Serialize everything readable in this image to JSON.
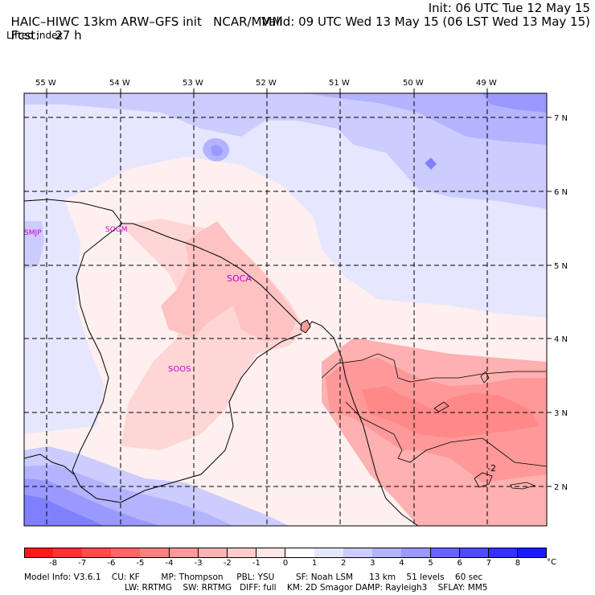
{
  "header": {
    "title": "HAIC–HIWC 13km ARW–GFS init",
    "org": "NCAR/MMM",
    "init": "Init: 06 UTC Tue 12 May 15",
    "fcst_label": "Fcst:",
    "fcst_value": "27 h",
    "valid": "Valid: 09 UTC Wed 13 May 15 (06 LST Wed 13 May 15)",
    "field": "Lifted index"
  },
  "map": {
    "lon_labels": [
      "55 W",
      "54 W",
      "53 W",
      "52 W",
      "51 W",
      "50 W",
      "49 W"
    ],
    "lat_labels": [
      "7 N",
      "6 N",
      "5 N",
      "4 N",
      "3 N",
      "2 N"
    ],
    "stations": [
      "SMJP",
      "SOGM",
      "SOCA",
      "SOOS"
    ],
    "contour_labels": [
      "-2"
    ]
  },
  "colorbar": {
    "ticks": [
      "-8",
      "-7",
      "-6",
      "-5",
      "-4",
      "-3",
      "-2",
      "-1",
      "0",
      "1",
      "2",
      "3",
      "4",
      "5",
      "6",
      "7",
      "8"
    ],
    "unit": "°C",
    "colors": [
      "#ff1a1a",
      "#ff3333",
      "#ff4d4d",
      "#ff6666",
      "#ff8080",
      "#ff9999",
      "#ffb3b3",
      "#ffcccc",
      "#ffe6e6",
      "#ffffff",
      "#e6e6ff",
      "#ccccff",
      "#b3b3ff",
      "#9999ff",
      "#6666ff",
      "#4d4dff",
      "#3333ff",
      "#1a1aff"
    ]
  },
  "footer": {
    "line1": "Model Info: V3.6.1    CU: KF        MP: Thompson     PBL: YSU        SF: Noah LSM      13 km    51 levels    60 sec",
    "line2": "LW: RRTMG    SW: RRTMG   DIFF: full    KM: 2D Smagor DAMP: Rayleigh3    SFLAY: MM5"
  }
}
